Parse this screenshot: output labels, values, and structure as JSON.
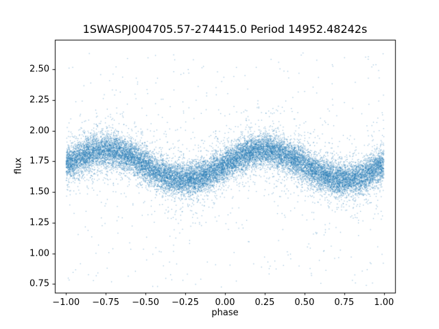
{
  "chart_data": {
    "type": "scatter",
    "title": "1SWASPJ004705.57-274415.0 Period 14952.48242s",
    "xlabel": "phase",
    "ylabel": "flux",
    "xlim": [
      -1.07,
      1.07
    ],
    "ylim": [
      0.68,
      2.74
    ],
    "x_ticks": [
      -1.0,
      -0.75,
      -0.5,
      -0.25,
      0.0,
      0.25,
      0.5,
      0.75,
      1.0
    ],
    "y_ticks": [
      0.75,
      1.0,
      1.25,
      1.5,
      1.75,
      2.0,
      2.25,
      2.5
    ],
    "grid": false,
    "legend": null,
    "marker_color": "#1f77b4",
    "marker_alpha": 0.5,
    "marker_size_px": 1.2,
    "n_points": 20000,
    "model": {
      "kind": "sinusoid-plus-noise",
      "x_range": [
        -1.0,
        1.0
      ],
      "mean_flux": 1.72,
      "amplitude": 0.12,
      "phase_of_max": 0.25,
      "core_sigma": 0.065,
      "mid_sigma": 0.16,
      "mid_fraction": 0.12,
      "outlier_fraction": 0.025,
      "flux_min": 0.72,
      "flux_max": 2.65,
      "seed": 42
    }
  }
}
